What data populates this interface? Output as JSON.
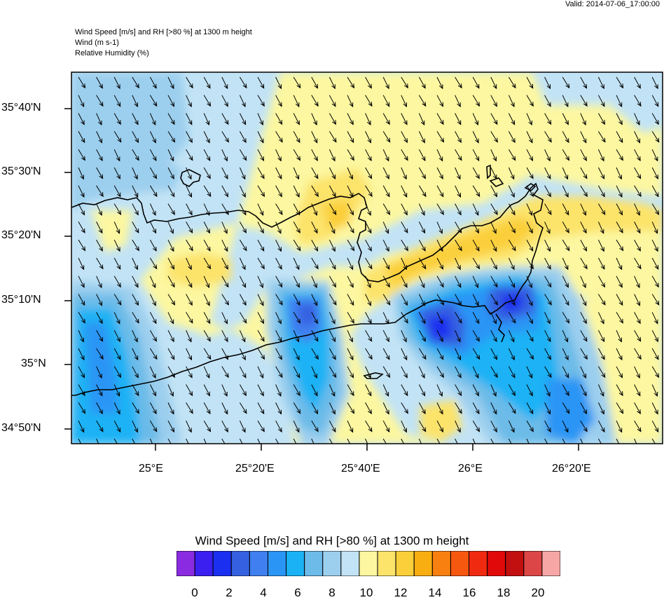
{
  "header": {
    "valid_time": "Valid: 2014-07-06_17:00:00",
    "lines": [
      "Wind Speed [m/s] and RH [>80 %] at 1300 m height",
      "Wind   (m s-1)",
      "Relative Humidity   (%)"
    ]
  },
  "map": {
    "lat_labels": [
      "35°40'N",
      "35°30'N",
      "35°20'N",
      "35°10'N",
      "35°N",
      "34°50'N"
    ],
    "lon_labels": [
      "25°E",
      "25°20'E",
      "25°40'E",
      "26°E",
      "26°20'E"
    ],
    "wind_direction": "north-west to south-east",
    "colors": {
      "land_outline": "#000000",
      "vector": "#000000"
    }
  },
  "colorbar": {
    "title": "Wind Speed [m/s] and RH [>80 %] at 1300 m height",
    "tick_labels": [
      "0",
      "2",
      "4",
      "6",
      "8",
      "10",
      "12",
      "14",
      "16",
      "18",
      "20"
    ],
    "colors": [
      "#8a2be2",
      "#3a1ff0",
      "#1a2ff0",
      "#3560e0",
      "#3f7ff0",
      "#2a95f5",
      "#1ab2f5",
      "#6cbbe8",
      "#9ccfee",
      "#c2e3f5",
      "#fcf7a0",
      "#fce36a",
      "#fbcf3a",
      "#f8ad10",
      "#f88010",
      "#f75810",
      "#f02a10",
      "#e00a0a",
      "#c20f0f",
      "#dc4646",
      "#f7a6a6"
    ]
  }
}
